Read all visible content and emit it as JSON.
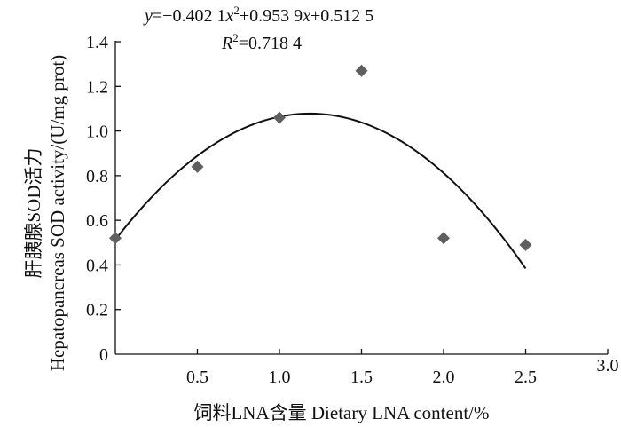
{
  "chart_data": {
    "type": "scatter",
    "xlabel": "饲料LNA含量 Dietary LNA content/%",
    "ylabel_line1": "肝胰腺SOD活力",
    "ylabel_line2": "Hepatopancreas SOD activity/(U/mg prot)",
    "xlim": [
      0,
      3.0
    ],
    "ylim": [
      0,
      1.4
    ],
    "x_ticks": [
      "0.5",
      "1.0",
      "1.5",
      "2.0",
      "2.5",
      "3.0"
    ],
    "y_ticks": [
      "0",
      "0.2",
      "0.4",
      "0.6",
      "0.8",
      "1.0",
      "1.2",
      "1.4"
    ],
    "grid": false,
    "series": [
      {
        "marker": "diamond",
        "color": "#5f5f5f",
        "points": [
          {
            "x": 0,
            "y": 0.52
          },
          {
            "x": 0.5,
            "y": 0.84
          },
          {
            "x": 1.0,
            "y": 1.06
          },
          {
            "x": 1.5,
            "y": 1.27
          },
          {
            "x": 2.0,
            "y": 0.52
          },
          {
            "x": 2.5,
            "y": 0.49
          }
        ]
      }
    ],
    "trendline": {
      "type": "polynomial",
      "coefficients": [
        -0.4021,
        0.9539,
        0.5125
      ],
      "x_range": [
        0,
        2.5
      ],
      "color": "#111111"
    },
    "equation": {
      "y": "y",
      "eq_part1": "=−0.402 1",
      "x1": "x",
      "sup2": "2",
      "eq_part2": "+0.953 9",
      "x2": "x",
      "eq_part3": "+0.512 5",
      "R": "R",
      "R_sup": "2",
      "R_value": "=0.718 4"
    }
  }
}
